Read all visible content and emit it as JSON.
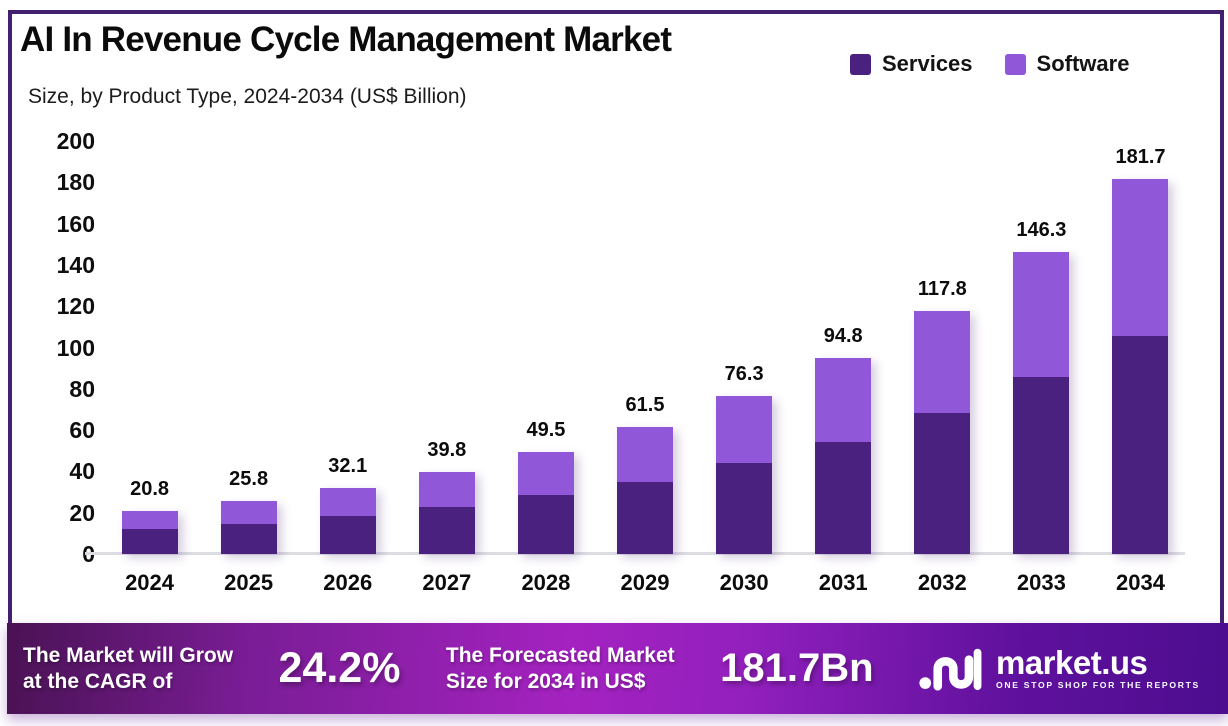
{
  "header": {
    "title": "AI In Revenue Cycle Management Market",
    "subtitle": "Size, by Product Type, 2024-2034 (US$ Billion)"
  },
  "legend": {
    "items": [
      {
        "label": "Services",
        "color": "#4B2180"
      },
      {
        "label": "Software",
        "color": "#9058D8"
      }
    ]
  },
  "chart_data": {
    "type": "bar",
    "stacked": true,
    "title": "AI In Revenue Cycle Management Market",
    "subtitle": "Size, by Product Type, 2024-2034 (US$ Billion)",
    "unit": "US$ Billion",
    "categories": [
      "2024",
      "2025",
      "2026",
      "2027",
      "2028",
      "2029",
      "2030",
      "2031",
      "2032",
      "2033",
      "2034"
    ],
    "series": [
      {
        "name": "Services",
        "color": "#4B2180",
        "values": [
          12.0,
          14.6,
          18.5,
          22.9,
          28.7,
          35.0,
          44.3,
          54.5,
          68.1,
          85.6,
          105.6
        ]
      },
      {
        "name": "Software",
        "color": "#9058D8",
        "values": [
          8.8,
          11.2,
          13.6,
          16.9,
          20.8,
          26.5,
          32.0,
          40.3,
          49.7,
          60.7,
          76.1
        ]
      }
    ],
    "totals": [
      "20.8",
      "25.8",
      "32.1",
      "39.8",
      "49.5",
      "61.5",
      "76.3",
      "94.8",
      "117.8",
      "146.3",
      "181.7"
    ],
    "ylim": [
      0,
      200
    ],
    "ytick_step": 20,
    "yticks": [
      200,
      180,
      160,
      140,
      120,
      100,
      80,
      60,
      40,
      20,
      0
    ],
    "grid": false,
    "legend_position": "top-right"
  },
  "footer": {
    "cagr": {
      "line1": "The Market will Grow",
      "line2": "at the CAGR of",
      "value": "24.2%"
    },
    "forecast": {
      "line1": "The Forecasted Market",
      "line2": "Size for 2034 in US$",
      "value": "181.7Bn"
    },
    "brand": {
      "name": "market.us",
      "tagline": "ONE STOP SHOP FOR THE REPORTS"
    }
  }
}
